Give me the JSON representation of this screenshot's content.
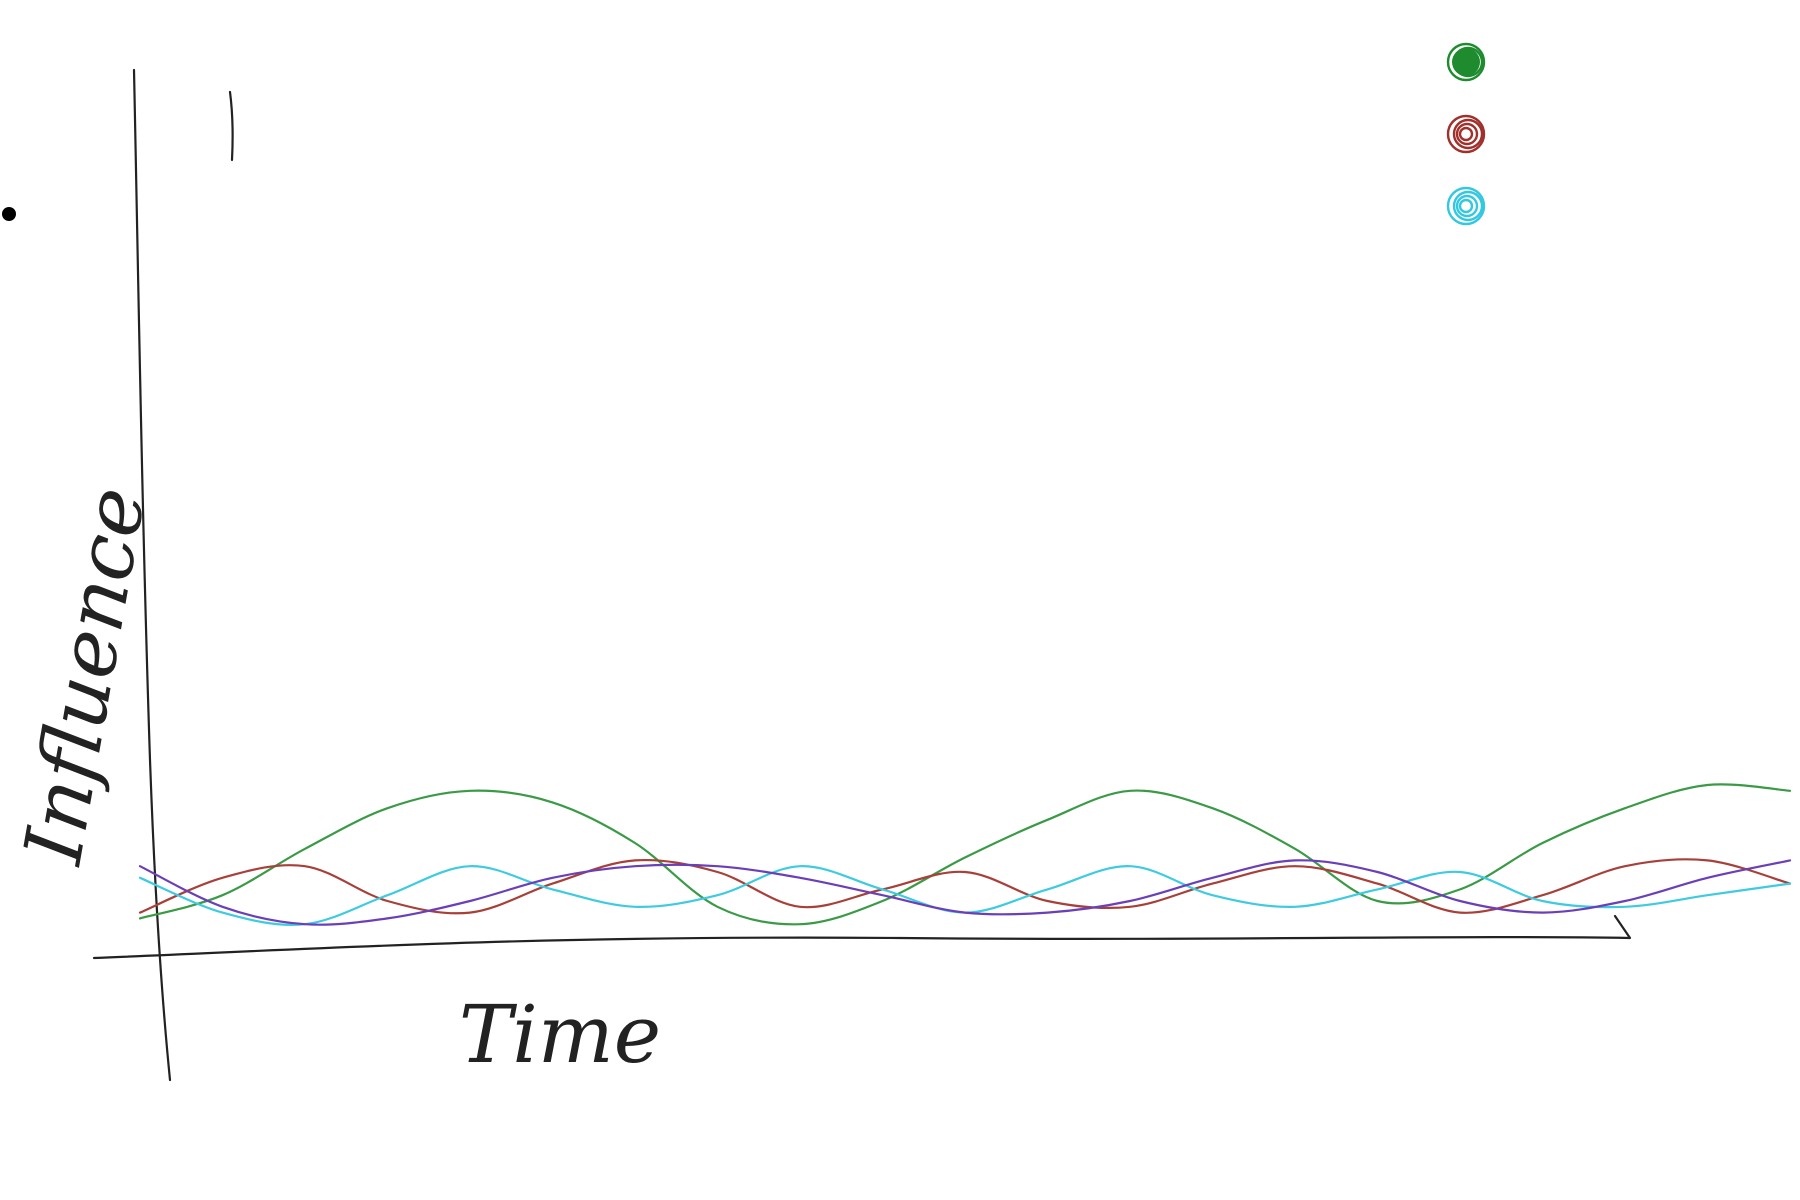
{
  "chart_data": {
    "type": "line",
    "title": "",
    "xlabel": "Time",
    "ylabel": "Influence",
    "xlim": [
      0,
      100
    ],
    "ylim": [
      0,
      100
    ],
    "grid": false,
    "legend": {
      "placement": "top-right",
      "entries": [
        {
          "label": "",
          "color": "#1e8c2e"
        },
        {
          "label": "",
          "color": "#a0302b"
        },
        {
          "label": "",
          "color": "#33c8e0"
        }
      ]
    },
    "x": [
      0,
      5,
      10,
      15,
      20,
      25,
      30,
      35,
      40,
      45,
      50,
      55,
      60,
      65,
      70,
      75,
      80,
      85,
      90,
      95,
      100
    ],
    "series": [
      {
        "color": "#3a9a46",
        "values": [
          4,
          12,
          28,
          42,
          48,
          44,
          30,
          8,
          2,
          10,
          25,
          38,
          48,
          42,
          28,
          10,
          14,
          30,
          42,
          50,
          48
        ]
      },
      {
        "color": "#a8403a",
        "values": [
          6,
          18,
          22,
          10,
          6,
          16,
          24,
          20,
          8,
          14,
          20,
          10,
          8,
          16,
          22,
          16,
          6,
          12,
          22,
          24,
          16
        ]
      },
      {
        "color": "#3ecbe0",
        "values": [
          18,
          6,
          2,
          12,
          22,
          14,
          8,
          12,
          22,
          14,
          6,
          14,
          22,
          12,
          8,
          14,
          20,
          10,
          8,
          12,
          16
        ]
      },
      {
        "color": "#6a3fb8",
        "values": [
          22,
          8,
          2,
          4,
          10,
          18,
          22,
          22,
          18,
          12,
          6,
          6,
          10,
          18,
          24,
          20,
          10,
          6,
          10,
          18,
          24
        ]
      }
    ]
  }
}
